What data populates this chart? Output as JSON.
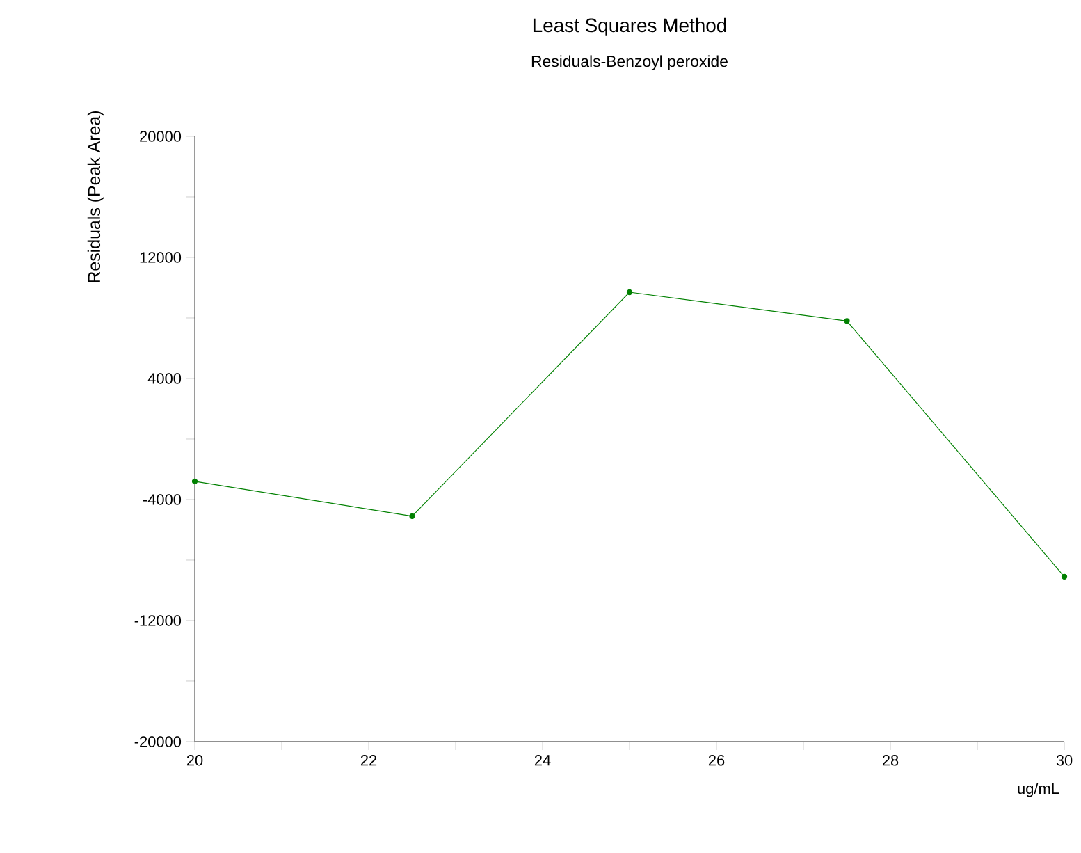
{
  "chart_data": {
    "type": "line",
    "title": "Least Squares Method",
    "subtitle": "Residuals-Benzoyl peroxide",
    "xlabel": "ug/mL",
    "ylabel": "Residuals (Peak Area)",
    "x": [
      20,
      22.5,
      25,
      27.5,
      30
    ],
    "series": [
      {
        "color": "#008000",
        "values": [
          -2800,
          -5100,
          9700,
          7800,
          -9100
        ]
      }
    ],
    "marker": "circle",
    "line_style": "solid",
    "xlim": [
      20,
      30
    ],
    "xticks": [
      20,
      {
        "value": 21,
        "label": null
      },
      22,
      {
        "value": 23,
        "label": null
      },
      24,
      {
        "value": 25,
        "label": null
      },
      26,
      {
        "value": 27,
        "label": null
      },
      28,
      {
        "value": 29,
        "label": null
      },
      30
    ],
    "ylim": [
      -20000,
      20000
    ],
    "yticks": [
      -20000,
      {
        "value": -16000,
        "label": null
      },
      -12000,
      {
        "value": -8000,
        "label": null
      },
      -4000,
      {
        "value": 0,
        "label": null
      },
      4000,
      {
        "value": 8000,
        "label": null
      },
      12000,
      {
        "value": 16000,
        "label": null
      },
      20000
    ]
  }
}
